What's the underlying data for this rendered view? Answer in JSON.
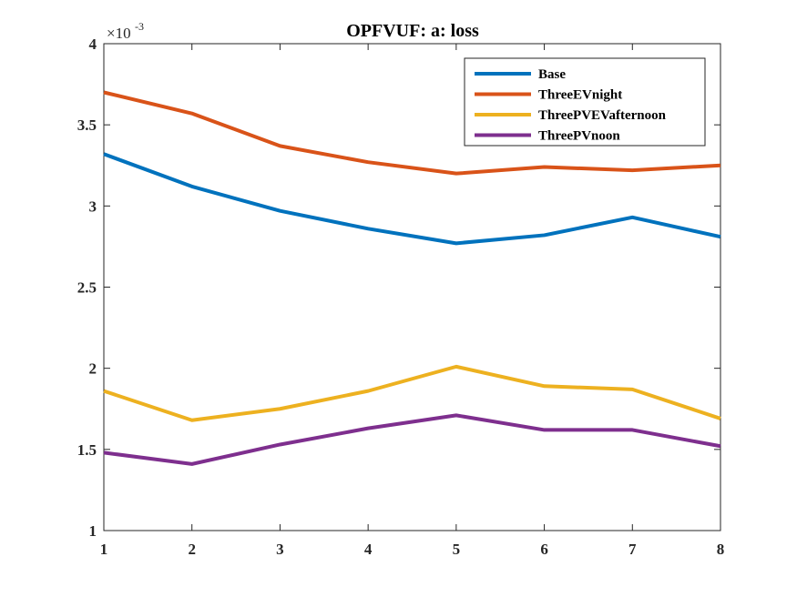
{
  "chart_data": {
    "type": "line",
    "title": "OPFVUF: a: loss",
    "xlabel": "",
    "ylabel": "",
    "x": [
      1,
      2,
      3,
      4,
      5,
      6,
      7,
      8
    ],
    "xlim": [
      1,
      8
    ],
    "ylim": [
      1,
      4
    ],
    "y_exponent": "×10",
    "y_exponent_power": "-3",
    "xticks": [
      "1",
      "2",
      "3",
      "4",
      "5",
      "6",
      "7",
      "8"
    ],
    "yticks": [
      "1",
      "1.5",
      "2",
      "2.5",
      "3",
      "3.5",
      "4"
    ],
    "ytick_values": [
      1,
      1.5,
      2,
      2.5,
      3,
      3.5,
      4
    ],
    "grid": false,
    "legend_position": "top-right",
    "series": [
      {
        "name": "Base",
        "color": "#0072BD",
        "values": [
          3.32,
          3.12,
          2.97,
          2.86,
          2.77,
          2.82,
          2.93,
          2.81
        ]
      },
      {
        "name": "ThreeEVnight",
        "color": "#D95319",
        "values": [
          3.7,
          3.57,
          3.37,
          3.27,
          3.2,
          3.24,
          3.22,
          3.25
        ]
      },
      {
        "name": "ThreePVEVafternoon",
        "color": "#EDB120",
        "values": [
          1.86,
          1.68,
          1.75,
          1.86,
          2.01,
          1.89,
          1.87,
          1.69
        ]
      },
      {
        "name": "ThreePVnoon",
        "color": "#7E2F8E",
        "values": [
          1.48,
          1.41,
          1.53,
          1.63,
          1.71,
          1.62,
          1.62,
          1.52
        ]
      }
    ]
  }
}
